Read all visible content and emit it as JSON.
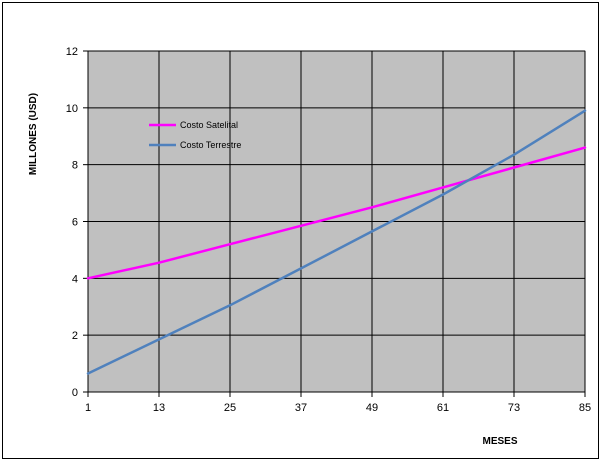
{
  "chart_data": {
    "type": "line",
    "x": [
      1,
      13,
      25,
      37,
      49,
      61,
      73,
      85
    ],
    "x_tick_labels": [
      "1",
      "13",
      "25",
      "37",
      "49",
      "61",
      "73",
      "85"
    ],
    "xlim": [
      1,
      85
    ],
    "ylim": [
      0,
      12
    ],
    "y_tick_labels": [
      "0",
      "2",
      "4",
      "6",
      "8",
      "10",
      "12"
    ],
    "xlabel": "MESES",
    "ylabel": "MILLONES (USD)",
    "grid": true,
    "legend_position": "top-left, inside plot",
    "plot_background": "#c0c0c0",
    "series": [
      {
        "name": "Costo Satelital",
        "color": "#ff00ff",
        "values": [
          4.0,
          4.55,
          5.2,
          5.85,
          6.5,
          7.2,
          7.9,
          8.6
        ]
      },
      {
        "name": "Costo Terrestre",
        "color": "#4f81bd",
        "values": [
          0.65,
          1.85,
          3.05,
          4.35,
          5.65,
          6.95,
          8.35,
          9.9
        ]
      }
    ]
  }
}
